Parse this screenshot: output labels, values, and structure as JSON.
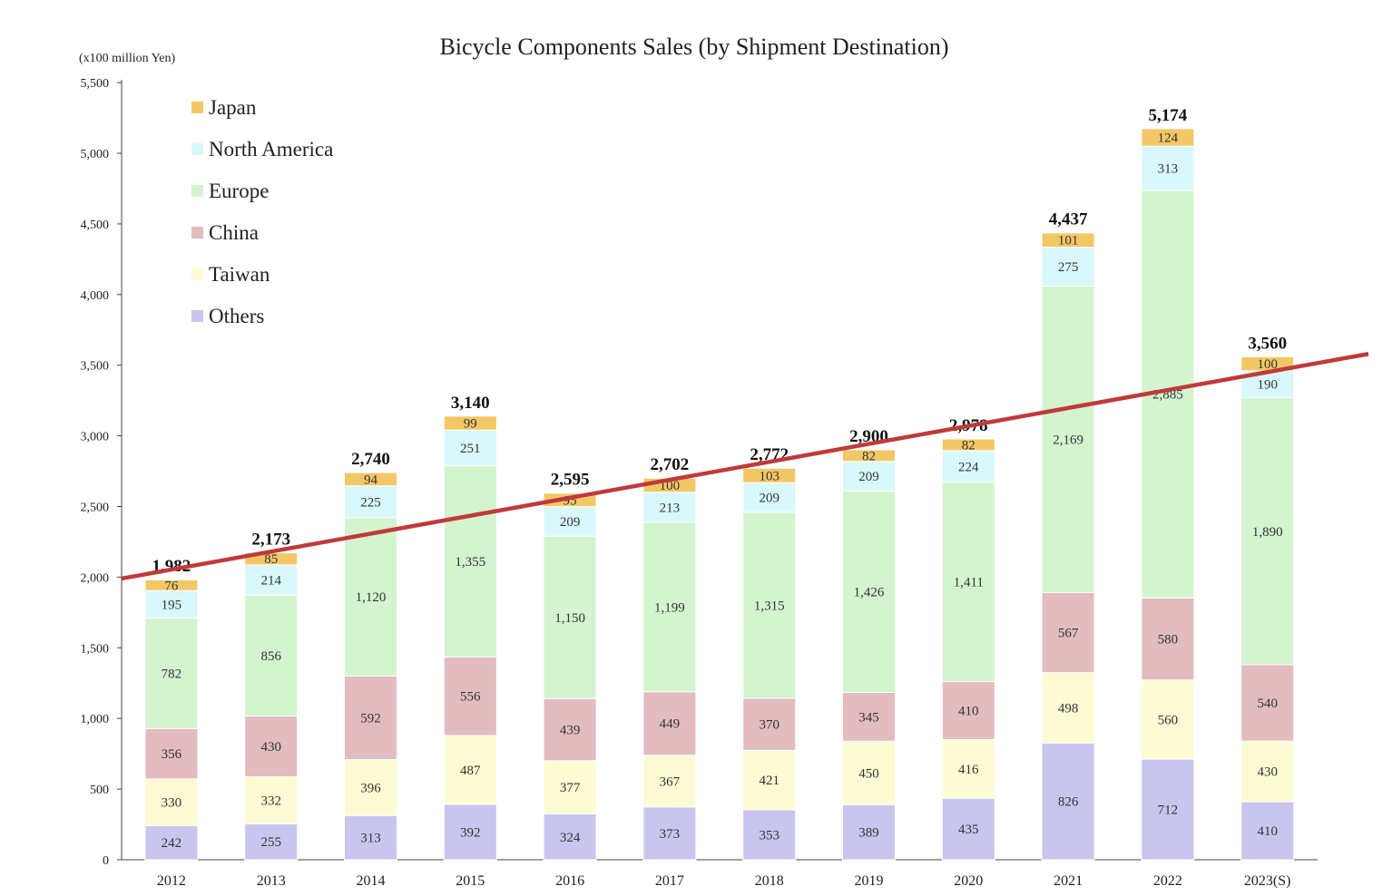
{
  "chart_data": {
    "type": "bar",
    "stacked": true,
    "title": "Bicycle Components Sales (by Shipment Destination)",
    "unit_label": "(x100 million Yen)",
    "xlabel": "",
    "ylabel": "",
    "ylim": [
      0,
      5500
    ],
    "yticks": [
      "0",
      "500",
      "1,000",
      "1,500",
      "2,000",
      "2,500",
      "3,000",
      "3,500",
      "4,000",
      "4,500",
      "5,000",
      "5,500"
    ],
    "categories": [
      "2012",
      "2013",
      "2014",
      "2015",
      "2016",
      "2017",
      "2018",
      "2019",
      "2020",
      "2021",
      "2022",
      "2023(S)"
    ],
    "series": [
      {
        "name": "Others",
        "color": "#c8c6ee",
        "values": [
          242,
          255,
          313,
          392,
          324,
          373,
          353,
          389,
          435,
          826,
          712,
          410
        ],
        "labels": [
          "242",
          "255",
          "313",
          "392",
          "324",
          "373",
          "353",
          "389",
          "435",
          "826",
          "712",
          "410"
        ]
      },
      {
        "name": "Taiwan",
        "color": "#fdfbd3",
        "values": [
          330,
          332,
          396,
          487,
          377,
          367,
          421,
          450,
          416,
          498,
          560,
          430
        ],
        "labels": [
          "330",
          "332",
          "396",
          "487",
          "377",
          "367",
          "421",
          "450",
          "416",
          "498",
          "560",
          "430"
        ]
      },
      {
        "name": "China",
        "color": "#e2bcbf",
        "values": [
          356,
          430,
          592,
          556,
          439,
          449,
          370,
          345,
          410,
          567,
          580,
          540
        ],
        "labels": [
          "356",
          "430",
          "592",
          "556",
          "439",
          "449",
          "370",
          "345",
          "410",
          "567",
          "580",
          "540"
        ]
      },
      {
        "name": "Europe",
        "color": "#d3f4cf",
        "values": [
          782,
          856,
          1120,
          1355,
          1150,
          1199,
          1315,
          1426,
          1411,
          2169,
          2885,
          1890
        ],
        "labels": [
          "782",
          "856",
          "1,120",
          "1,355",
          "1,150",
          "1,199",
          "1,315",
          "1,426",
          "1,411",
          "2,169",
          "2,885",
          "1,890"
        ]
      },
      {
        "name": "North America",
        "color": "#d9f8fb",
        "values": [
          195,
          214,
          225,
          251,
          209,
          213,
          209,
          209,
          224,
          275,
          313,
          190
        ],
        "labels": [
          "195",
          "214",
          "225",
          "251",
          "209",
          "213",
          "209",
          "209",
          "224",
          "275",
          "313",
          "190"
        ]
      },
      {
        "name": "Japan",
        "color": "#f3c766",
        "values": [
          76,
          85,
          94,
          99,
          95,
          100,
          103,
          82,
          82,
          101,
          124,
          100
        ],
        "labels": [
          "76",
          "85",
          "94",
          "99",
          "95",
          "100",
          "103",
          "82",
          "82",
          "101",
          "124",
          "100"
        ]
      }
    ],
    "totals": [
      1982,
      2173,
      2740,
      3140,
      2595,
      2702,
      2772,
      2900,
      2978,
      4437,
      5174,
      3560
    ],
    "total_labels": [
      "1,982",
      "2,173",
      "2,740",
      "3,140",
      "2,595",
      "2,702",
      "2,772",
      "2,900",
      "2,978",
      "4,437",
      "5,174",
      "3,560"
    ],
    "legend": {
      "placement": "top-left",
      "order": [
        "Japan",
        "North America",
        "Europe",
        "China",
        "Taiwan",
        "Others"
      ]
    },
    "trend_line": {
      "color": "#c0393b",
      "start_value": 1990,
      "end_value": 3580
    },
    "grid": false
  }
}
